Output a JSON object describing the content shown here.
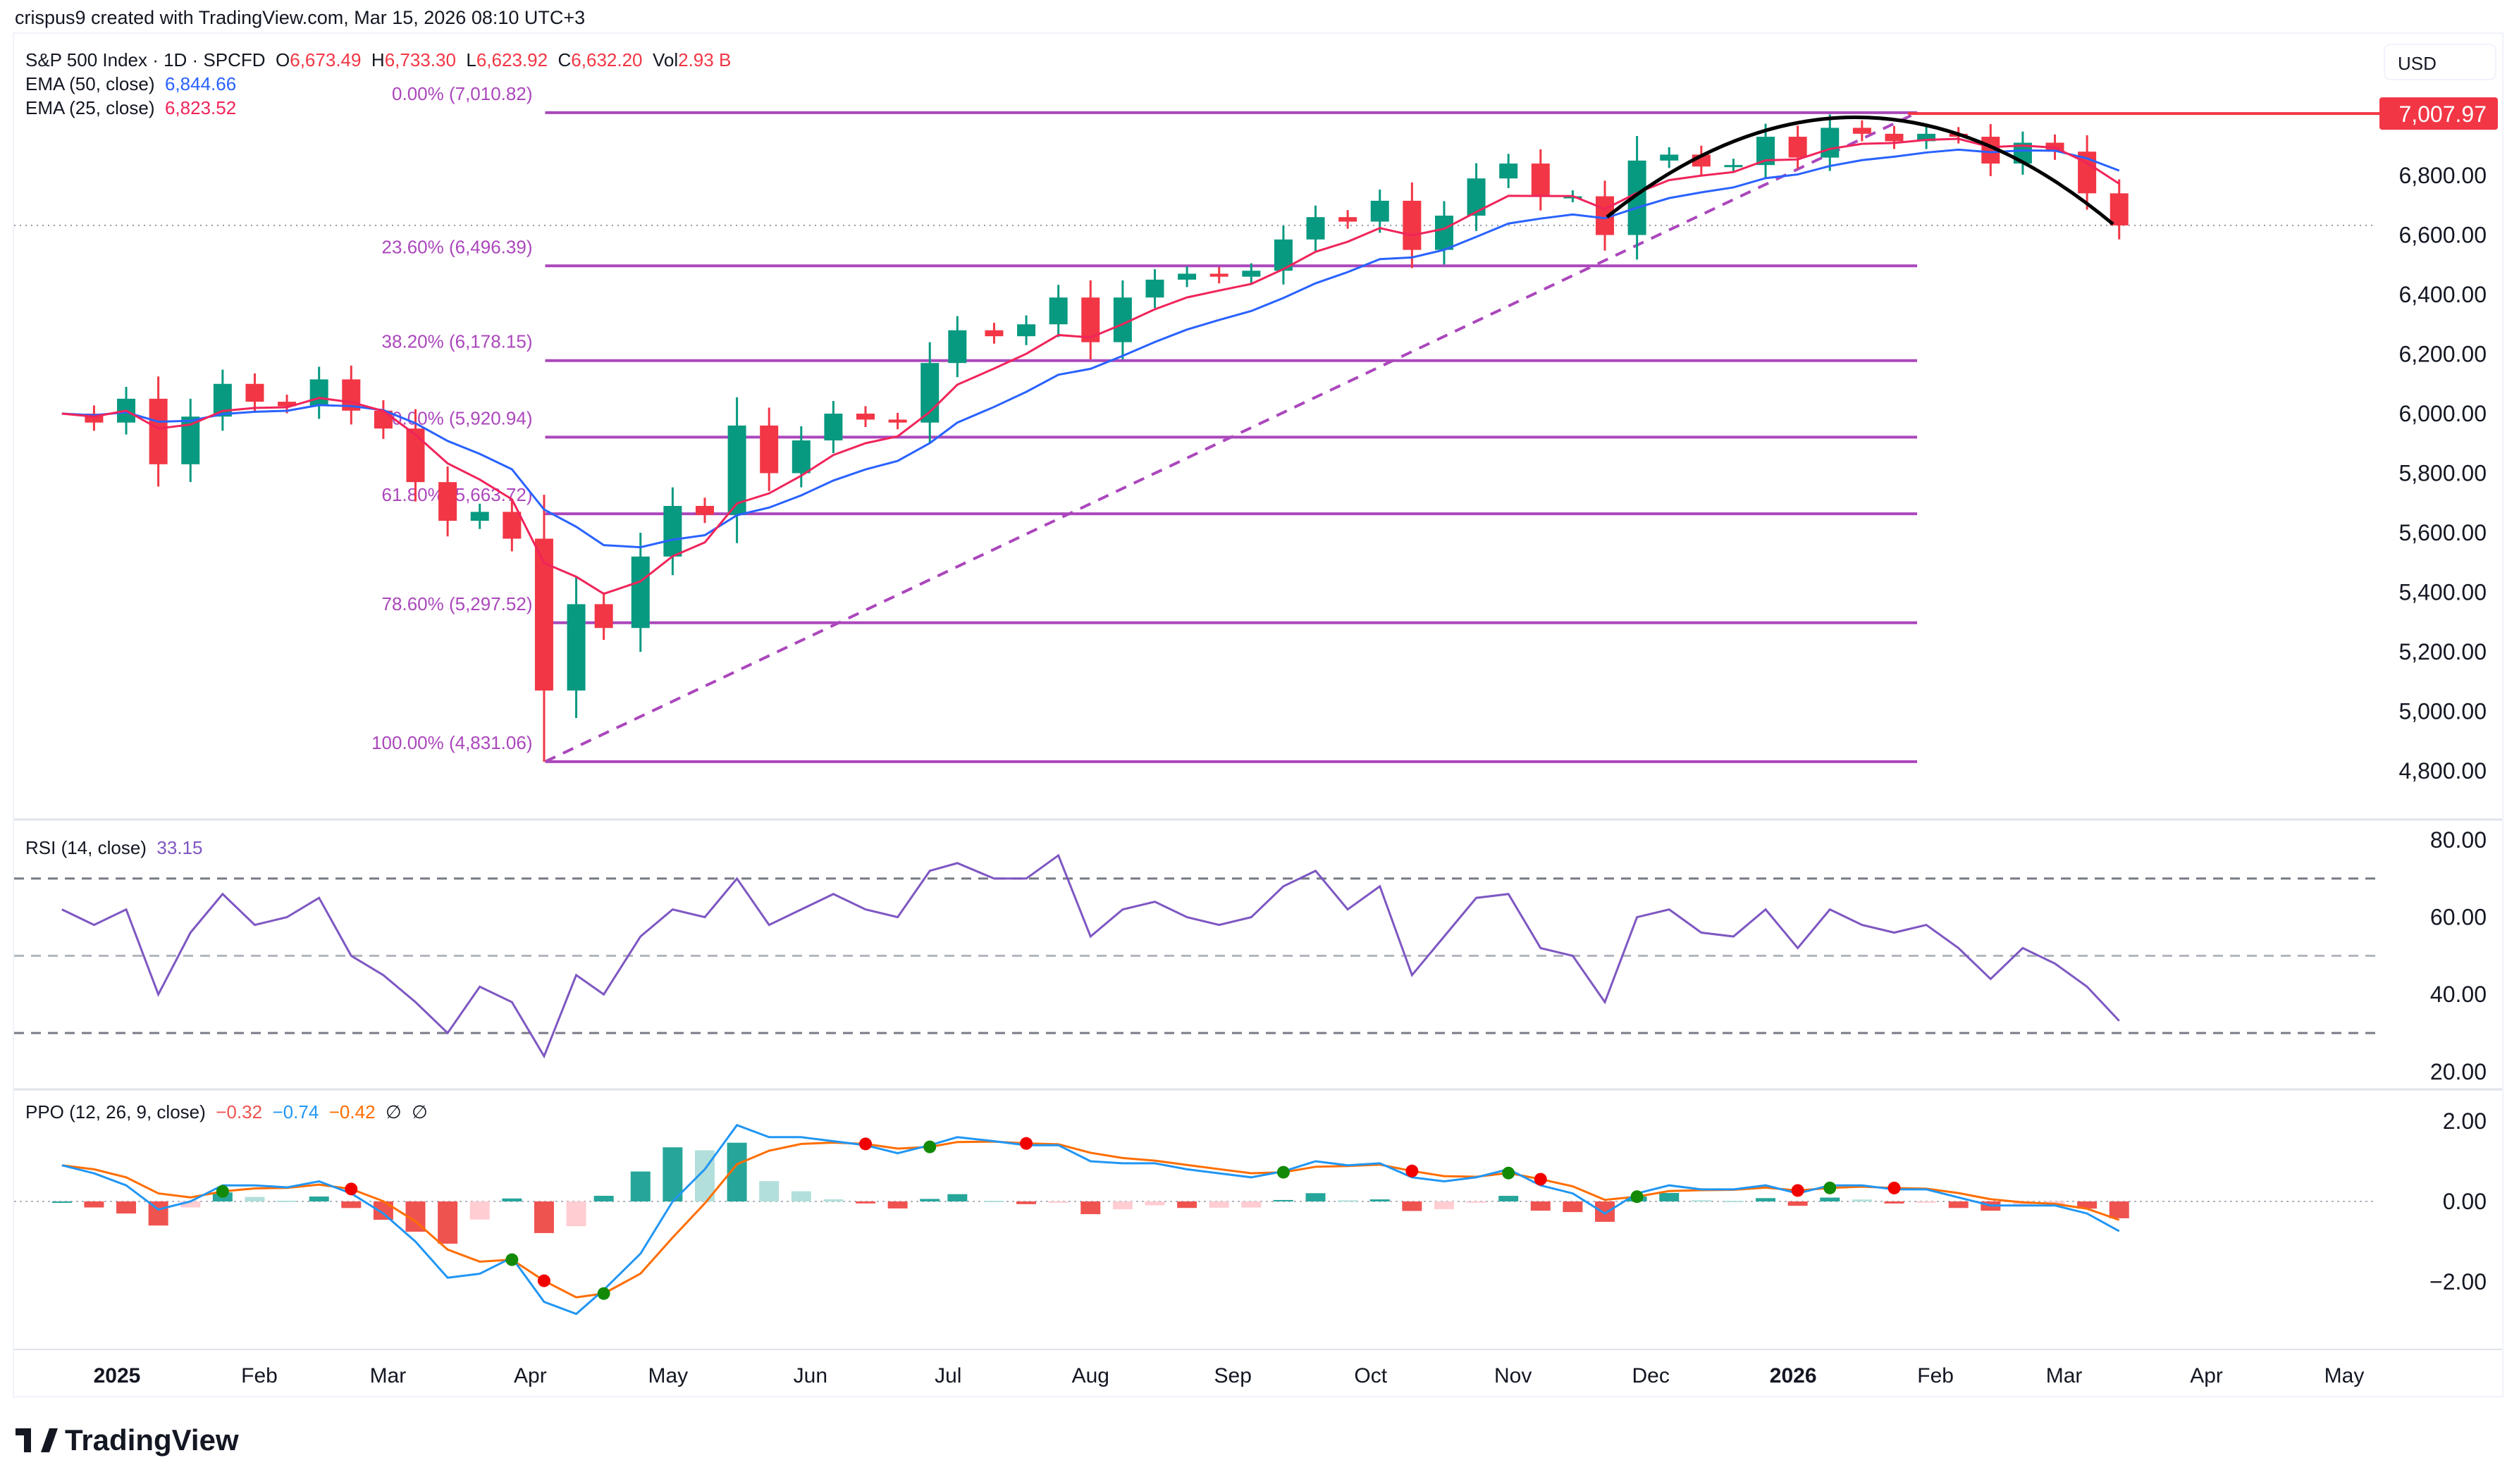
{
  "attribution": "crispus9 created with TradingView.com, Mar 15, 2026 08:10 UTC+3",
  "legend": {
    "symbol": "S&P 500 Index · 1D · SPCFD",
    "o_label": "O",
    "o": "6,673.49",
    "h_label": "H",
    "h": "6,733.30",
    "l_label": "L",
    "l": "6,623.92",
    "c_label": "C",
    "c": "6,632.20",
    "vol_label": "Vol",
    "vol": "2.93 B",
    "ema50_label": "EMA (50, close)",
    "ema50": "6,844.66",
    "ema25_label": "EMA (25, close)",
    "ema25": "6,823.52"
  },
  "currency": "USD",
  "price_tag": "7,007.97",
  "rsi": {
    "label": "RSI (14, close)",
    "value": "33.15"
  },
  "ppo": {
    "label": "PPO (12, 26, 9, close)",
    "hist": "−0.32",
    "ppo": "−0.74",
    "signal": "−0.42",
    "flag1": "∅",
    "flag2": "∅"
  },
  "logo_text": "TradingView",
  "colors": {
    "up": "#089981",
    "down": "#f23645",
    "ema50": "#2962ff",
    "ema25": "#f0245a",
    "fib": "#ab47bc",
    "rsi": "#7e57c2",
    "ppo": "#2196f3",
    "signal": "#ff6d00",
    "resistance": "#f23645"
  },
  "chart_data": {
    "type": "candlestick",
    "price_axis": {
      "ticks": [
        6800,
        6600,
        6400,
        6200,
        6000,
        5800,
        5600,
        5400,
        5200,
        5000,
        4800
      ],
      "labels": [
        "6,800.00",
        "6,600.00",
        "6,400.00",
        "6,200.00",
        "6,000.00",
        "5,800.00",
        "5,600.00",
        "5,400.00",
        "5,200.00",
        "5,000.00",
        "4,800.00"
      ]
    },
    "time_axis": [
      {
        "date": "2025-01-01",
        "label": "2025",
        "bold": true
      },
      {
        "date": "2025-02-01",
        "label": "Feb"
      },
      {
        "date": "2025-03-01",
        "label": "Mar"
      },
      {
        "date": "2025-04-01",
        "label": "Apr"
      },
      {
        "date": "2025-05-01",
        "label": "May"
      },
      {
        "date": "2025-06-01",
        "label": "Jun"
      },
      {
        "date": "2025-07-01",
        "label": "Jul"
      },
      {
        "date": "2025-08-01",
        "label": "Aug"
      },
      {
        "date": "2025-09-01",
        "label": "Sep"
      },
      {
        "date": "2025-10-01",
        "label": "Oct"
      },
      {
        "date": "2025-11-01",
        "label": "Nov"
      },
      {
        "date": "2025-12-01",
        "label": "Dec"
      },
      {
        "date": "2026-01-01",
        "label": "2026",
        "bold": true
      },
      {
        "date": "2026-02-01",
        "label": "Feb"
      },
      {
        "date": "2026-03-01",
        "label": "Mar"
      },
      {
        "date": "2026-04-01",
        "label": "Apr"
      },
      {
        "date": "2026-05-01",
        "label": "May"
      }
    ],
    "weeks": [
      "2024-12-20",
      "2024-12-27",
      "2025-01-03",
      "2025-01-10",
      "2025-01-17",
      "2025-01-24",
      "2025-01-31",
      "2025-02-07",
      "2025-02-14",
      "2025-02-21",
      "2025-02-28",
      "2025-03-07",
      "2025-03-14",
      "2025-03-21",
      "2025-03-28",
      "2025-04-04",
      "2025-04-11",
      "2025-04-17",
      "2025-04-25",
      "2025-05-02",
      "2025-05-09",
      "2025-05-16",
      "2025-05-23",
      "2025-05-30",
      "2025-06-06",
      "2025-06-13",
      "2025-06-20",
      "2025-06-27",
      "2025-07-03",
      "2025-07-11",
      "2025-07-18",
      "2025-07-25",
      "2025-08-01",
      "2025-08-08",
      "2025-08-15",
      "2025-08-22",
      "2025-08-29",
      "2025-09-05",
      "2025-09-12",
      "2025-09-19",
      "2025-09-26",
      "2025-10-03",
      "2025-10-10",
      "2025-10-17",
      "2025-10-24",
      "2025-10-31",
      "2025-11-07",
      "2025-11-14",
      "2025-11-21",
      "2025-11-28",
      "2025-12-05",
      "2025-12-12",
      "2025-12-19",
      "2025-12-26",
      "2026-01-02",
      "2026-01-09",
      "2026-01-16",
      "2026-01-23",
      "2026-01-30",
      "2026-02-06",
      "2026-02-13",
      "2026-02-20",
      "2026-02-27",
      "2026-03-06",
      "2026-03-13"
    ],
    "close": [
      6000,
      5970,
      6050,
      5830,
      5990,
      6100,
      6040,
      6025,
      6115,
      6010,
      5950,
      5770,
      5640,
      5670,
      5580,
      5070,
      5360,
      5280,
      5520,
      5690,
      5660,
      5960,
      5800,
      5910,
      6000,
      5980,
      5970,
      6170,
      6280,
      6260,
      6300,
      6390,
      6240,
      6390,
      6450,
      6470,
      6460,
      6480,
      6585,
      6660,
      6645,
      6715,
      6550,
      6665,
      6790,
      6840,
      6730,
      6730,
      6600,
      6850,
      6870,
      6830,
      6835,
      6930,
      6860,
      6960,
      6940,
      6915,
      6940,
      6930,
      6840,
      6910,
      6880,
      6740,
      6632.2
    ],
    "rsi": [
      62,
      58,
      62,
      40,
      56,
      66,
      58,
      60,
      65,
      50,
      45,
      38,
      30,
      42,
      38,
      24,
      45,
      40,
      55,
      62,
      60,
      70,
      58,
      62,
      66,
      62,
      60,
      72,
      74,
      70,
      70,
      76,
      55,
      62,
      64,
      60,
      58,
      60,
      68,
      72,
      62,
      68,
      45,
      55,
      65,
      66,
      52,
      50,
      38,
      60,
      62,
      56,
      55,
      62,
      52,
      62,
      58,
      56,
      58,
      52,
      44,
      52,
      48,
      42,
      33.15
    ],
    "ppo_line": [
      0.9,
      0.7,
      0.4,
      -0.2,
      0.0,
      0.4,
      0.4,
      0.35,
      0.5,
      0.2,
      -0.3,
      -1.0,
      -1.9,
      -1.8,
      -1.4,
      -2.5,
      -2.8,
      -2.2,
      -1.3,
      0.0,
      0.8,
      1.9,
      1.6,
      1.6,
      1.5,
      1.4,
      1.2,
      1.4,
      1.6,
      1.5,
      1.4,
      1.4,
      1.0,
      0.95,
      0.95,
      0.8,
      0.7,
      0.6,
      0.75,
      1.0,
      0.9,
      0.95,
      0.6,
      0.5,
      0.6,
      0.8,
      0.4,
      0.2,
      -0.3,
      0.2,
      0.4,
      0.3,
      0.3,
      0.4,
      0.2,
      0.4,
      0.4,
      0.3,
      0.3,
      0.1,
      -0.1,
      -0.1,
      -0.1,
      -0.3,
      -0.74
    ],
    "fibonacci": [
      {
        "label": "0.00% (7,010.82)",
        "price": 7010.82
      },
      {
        "label": "23.60% (6,496.39)",
        "price": 6496.39
      },
      {
        "label": "38.20% (6,178.15)",
        "price": 6178.15
      },
      {
        "label": "50.00% (5,920.94)",
        "price": 5920.94
      },
      {
        "label": "61.80% (5,663.72)",
        "price": 5663.72
      },
      {
        "label": "78.60% (5,297.52)",
        "price": 5297.52
      },
      {
        "label": "100.00% (4,831.06)",
        "price": 4831.06
      }
    ],
    "fib_range": {
      "from": "2025-04-07",
      "to": "2026-01-28"
    },
    "resistance": {
      "price": 7007.97,
      "from": "2026-01-26"
    },
    "last_price": 6632.2,
    "rsi_axis": {
      "ticks": [
        80,
        60,
        40,
        20
      ],
      "labels": [
        "80.00",
        "60.00",
        "40.00",
        "20.00"
      ],
      "levels": [
        70,
        50,
        30
      ]
    },
    "ppo_axis": {
      "ticks": [
        2,
        0,
        -2
      ],
      "labels": [
        "2.00",
        "0.00",
        "−2.00"
      ]
    }
  }
}
